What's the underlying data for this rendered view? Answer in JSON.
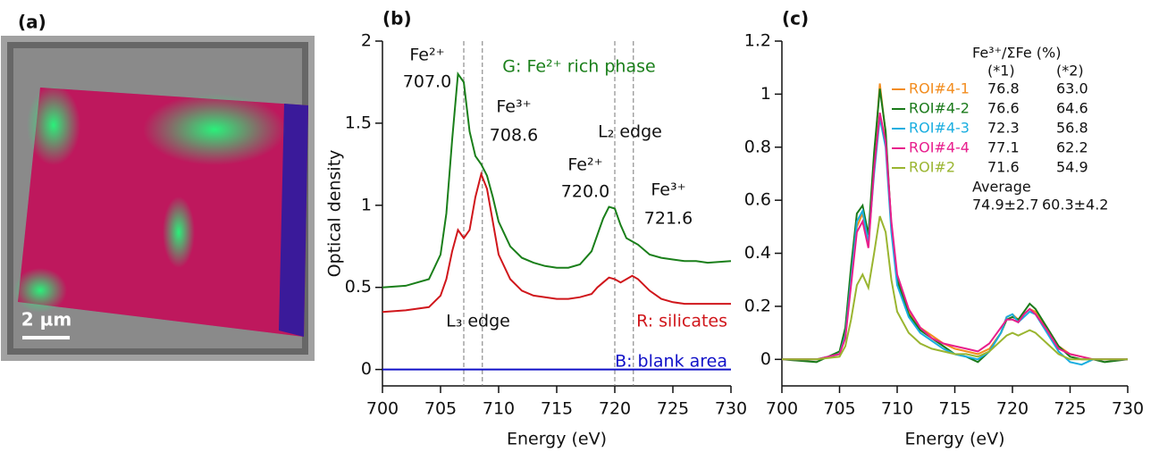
{
  "panel_a": {
    "label": "(a)",
    "scale_bar": "2 µm"
  },
  "chart_data": [
    {
      "type": "line",
      "panel_label": "(b)",
      "xlabel": "Energy (eV)",
      "ylabel": "Optical density",
      "xlim": [
        700,
        730
      ],
      "xticks": [
        700,
        705,
        710,
        715,
        720,
        725,
        730
      ],
      "ylim": [
        -0.1,
        2
      ],
      "yticks": [
        0,
        0.5,
        1,
        1.5,
        2
      ],
      "x": [
        700,
        702,
        704,
        705,
        705.5,
        706,
        706.5,
        707,
        707.5,
        708,
        708.5,
        709,
        709.5,
        710,
        711,
        712,
        713,
        714,
        715,
        716,
        717,
        718,
        718.5,
        719,
        719.5,
        720,
        720.5,
        721,
        721.5,
        722,
        723,
        724,
        725,
        726,
        727,
        728,
        730
      ],
      "series": [
        {
          "name": "G: Fe²⁺ rich phase",
          "color": "#1a7f1a",
          "values": [
            0.5,
            0.51,
            0.55,
            0.7,
            0.95,
            1.4,
            1.8,
            1.75,
            1.45,
            1.3,
            1.25,
            1.18,
            1.05,
            0.9,
            0.75,
            0.68,
            0.65,
            0.63,
            0.62,
            0.62,
            0.64,
            0.72,
            0.82,
            0.92,
            0.99,
            0.98,
            0.88,
            0.8,
            0.78,
            0.76,
            0.7,
            0.68,
            0.67,
            0.66,
            0.66,
            0.65,
            0.66
          ]
        },
        {
          "name": "R: silicates",
          "color": "#d0161b",
          "values": [
            0.35,
            0.36,
            0.38,
            0.45,
            0.55,
            0.72,
            0.85,
            0.8,
            0.85,
            1.05,
            1.19,
            1.1,
            0.9,
            0.7,
            0.55,
            0.48,
            0.45,
            0.44,
            0.43,
            0.43,
            0.44,
            0.46,
            0.5,
            0.53,
            0.56,
            0.55,
            0.53,
            0.55,
            0.57,
            0.55,
            0.48,
            0.43,
            0.41,
            0.4,
            0.4,
            0.4,
            0.4
          ]
        },
        {
          "name": "B: blank area",
          "color": "#1010c8",
          "values": [
            0,
            0,
            0,
            0,
            0,
            0,
            0,
            0,
            0,
            0,
            0,
            0,
            0,
            0,
            0,
            0,
            0,
            0,
            0,
            0,
            0,
            0,
            0,
            0,
            0,
            0,
            0,
            0,
            0,
            0,
            0,
            0,
            0,
            0,
            0,
            0,
            0
          ]
        }
      ],
      "annotations": [
        {
          "ion": "Fe²⁺",
          "energy": {
            "value": 707,
            "label": "707.0"
          }
        },
        {
          "ion": "Fe³⁺",
          "energy": 708.6
        },
        {
          "ion": "Fe²⁺",
          "energy": {
            "value": 720,
            "label": "720.0"
          }
        },
        {
          "ion": "Fe³⁺",
          "energy": 721.6
        }
      ],
      "edge_labels": [
        "L₃ edge",
        "L₂ edge"
      ]
    },
    {
      "type": "line",
      "panel_label": "(c)",
      "xlabel": "Energy (eV)",
      "xlim": [
        700,
        730
      ],
      "xticks": [
        700,
        705,
        710,
        715,
        720,
        725,
        730
      ],
      "ylim": [
        -0.1,
        1.2
      ],
      "yticks": [
        0,
        0.2,
        0.4,
        0.6,
        0.8,
        1,
        1.2
      ],
      "x": [
        700,
        703,
        705,
        705.5,
        706,
        706.5,
        707,
        707.5,
        708,
        708.5,
        709,
        709.5,
        710,
        711,
        712,
        713,
        714,
        715,
        716,
        717,
        718,
        719,
        719.5,
        720,
        720.5,
        721,
        721.5,
        722,
        723,
        724,
        725,
        726,
        727,
        728,
        730
      ],
      "series": [
        {
          "name": "ROI#4-1",
          "color": "#f28c1e",
          "values": [
            0,
            0,
            0.02,
            0.1,
            0.3,
            0.5,
            0.55,
            0.45,
            0.75,
            1.04,
            0.85,
            0.5,
            0.3,
            0.18,
            0.12,
            0.09,
            0.06,
            0.04,
            0.03,
            0.02,
            0.04,
            0.1,
            0.16,
            0.17,
            0.15,
            0.17,
            0.19,
            0.18,
            0.12,
            0.05,
            0.02,
            0.01,
            0,
            0,
            0
          ]
        },
        {
          "name": "ROI#4-2",
          "color": "#1a7a1a",
          "values": [
            0,
            -0.01,
            0.03,
            0.12,
            0.35,
            0.55,
            0.58,
            0.47,
            0.78,
            1.02,
            0.86,
            0.5,
            0.3,
            0.17,
            0.11,
            0.08,
            0.05,
            0.02,
            0.01,
            -0.01,
            0.03,
            0.1,
            0.15,
            0.16,
            0.15,
            0.18,
            0.21,
            0.19,
            0.12,
            0.05,
            0.01,
            0,
            0,
            -0.01,
            0
          ]
        },
        {
          "name": "ROI#4-3",
          "color": "#1aaee0",
          "values": [
            0,
            0,
            0.02,
            0.09,
            0.3,
            0.52,
            0.56,
            0.44,
            0.7,
            0.91,
            0.8,
            0.48,
            0.28,
            0.16,
            0.1,
            0.07,
            0.04,
            0.02,
            0.01,
            0,
            0.03,
            0.1,
            0.16,
            0.17,
            0.14,
            0.16,
            0.18,
            0.17,
            0.1,
            0.03,
            -0.01,
            -0.02,
            0,
            0,
            0
          ]
        },
        {
          "name": "ROI#4-4",
          "color": "#e81e8c",
          "values": [
            0,
            0,
            0.02,
            0.08,
            0.28,
            0.48,
            0.52,
            0.42,
            0.72,
            0.93,
            0.82,
            0.52,
            0.32,
            0.19,
            0.12,
            0.08,
            0.06,
            0.05,
            0.04,
            0.03,
            0.06,
            0.12,
            0.15,
            0.15,
            0.14,
            0.17,
            0.19,
            0.17,
            0.11,
            0.04,
            0.02,
            0.01,
            0,
            0,
            0
          ]
        },
        {
          "name": "ROI#2",
          "color": "#9ab530",
          "values": [
            0,
            0,
            0.01,
            0.05,
            0.15,
            0.28,
            0.32,
            0.27,
            0.4,
            0.54,
            0.48,
            0.3,
            0.18,
            0.1,
            0.06,
            0.04,
            0.03,
            0.02,
            0.02,
            0.01,
            0.03,
            0.07,
            0.09,
            0.1,
            0.09,
            0.1,
            0.11,
            0.1,
            0.06,
            0.02,
            0,
            0,
            0,
            0,
            0
          ]
        }
      ],
      "table": {
        "header": "Fe³⁺/ΣFe (%)",
        "columns": [
          "(*1)",
          "(*2)"
        ],
        "rows": [
          [
            "76.8",
            "63.0"
          ],
          [
            "76.6",
            "64.6"
          ],
          [
            "72.3",
            "56.8"
          ],
          [
            "77.1",
            "62.2"
          ],
          [
            "71.6",
            "54.9"
          ]
        ],
        "average_label": "Average",
        "average": [
          "74.9±2.7",
          "60.3±4.2"
        ]
      }
    }
  ]
}
